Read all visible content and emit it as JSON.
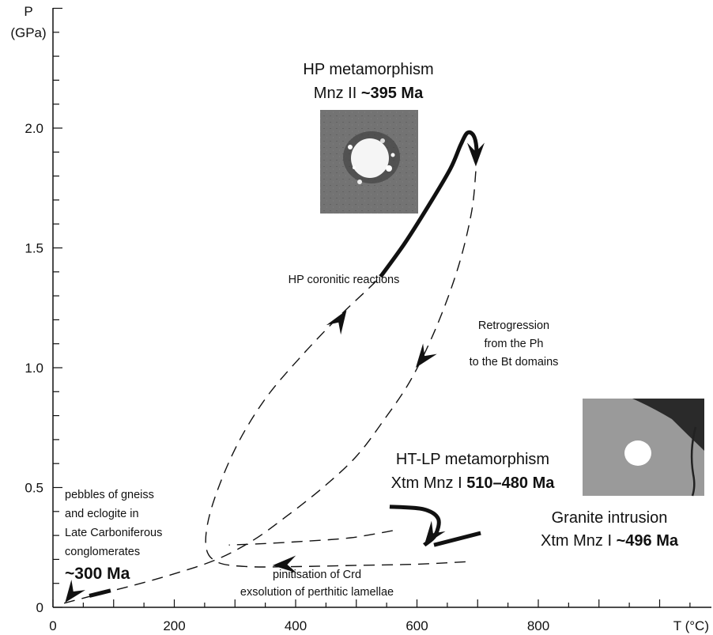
{
  "chart_data": {
    "type": "line",
    "title": "",
    "xlabel": "T (°C)",
    "ylabel_line1": "P",
    "ylabel_line2": "(GPa)",
    "xlim": [
      0,
      1000
    ],
    "ylim": [
      0,
      2.5
    ],
    "x_ticks": [
      {
        "value": 0,
        "label": "0"
      },
      {
        "value": 200,
        "label": "200"
      },
      {
        "value": 400,
        "label": "400"
      },
      {
        "value": 600,
        "label": "600"
      },
      {
        "value": 800,
        "label": "800"
      }
    ],
    "y_ticks": [
      {
        "value": 0,
        "label": "0"
      },
      {
        "value": 0.5,
        "label": "0.5"
      },
      {
        "value": 1.0,
        "label": "1.0"
      },
      {
        "value": 1.5,
        "label": "1.5"
      },
      {
        "value": 2.0,
        "label": "2.0"
      }
    ],
    "paths": [
      {
        "name": "prograde-dashed",
        "style": "dashed",
        "points": [
          [
            680,
            0.19
          ],
          [
            600,
            0.18
          ],
          [
            500,
            0.175
          ],
          [
            400,
            0.17
          ],
          [
            320,
            0.17
          ],
          [
            270,
            0.19
          ],
          [
            252,
            0.26
          ],
          [
            262,
            0.42
          ],
          [
            300,
            0.66
          ],
          [
            350,
            0.87
          ],
          [
            410,
            1.05
          ],
          [
            470,
            1.21
          ],
          [
            520,
            1.33
          ],
          [
            540,
            1.38
          ]
        ]
      },
      {
        "name": "hp-path-solid",
        "style": "solid",
        "points": [
          [
            540,
            1.38
          ],
          [
            580,
            1.52
          ],
          [
            620,
            1.68
          ],
          [
            655,
            1.83
          ],
          [
            672,
            1.93
          ],
          [
            683,
            1.98
          ],
          [
            693,
            1.97
          ],
          [
            698,
            1.92
          ],
          [
            697,
            1.86
          ]
        ]
      },
      {
        "name": "retrograde-dashed",
        "style": "dashed",
        "points": [
          [
            697,
            1.82
          ],
          [
            690,
            1.65
          ],
          [
            668,
            1.42
          ],
          [
            632,
            1.17
          ],
          [
            590,
            0.95
          ],
          [
            545,
            0.78
          ],
          [
            500,
            0.63
          ],
          [
            445,
            0.5
          ],
          [
            385,
            0.38
          ],
          [
            330,
            0.28
          ],
          [
            270,
            0.2
          ],
          [
            200,
            0.14
          ],
          [
            130,
            0.09
          ],
          [
            60,
            0.045
          ],
          [
            15,
            0.015
          ]
        ]
      },
      {
        "name": "granite-path-solid",
        "style": "solid",
        "points": [
          [
            555,
            0.42
          ],
          [
            610,
            0.41
          ],
          [
            635,
            0.37
          ],
          [
            630,
            0.3
          ],
          [
            612,
            0.26
          ]
        ]
      },
      {
        "name": "late-dashed",
        "style": "dashed",
        "points": [
          [
            560,
            0.32
          ],
          [
            490,
            0.29
          ],
          [
            410,
            0.275
          ],
          [
            340,
            0.265
          ],
          [
            290,
            0.26
          ]
        ]
      }
    ],
    "arrows": [
      {
        "name": "arrow-hp-peak",
        "at": [
          697,
          1.84
        ],
        "direction": "down"
      },
      {
        "name": "arrow-prograde",
        "at": [
          484,
          1.24
        ],
        "direction": "up-right"
      },
      {
        "name": "arrow-retro",
        "at": [
          598,
          1.0
        ],
        "direction": "down-left"
      },
      {
        "name": "arrow-granite",
        "at": [
          612,
          0.26
        ],
        "direction": "down-left"
      },
      {
        "name": "arrow-pinitisation",
        "at": [
          362,
          0.175
        ],
        "direction": "left"
      },
      {
        "name": "arrow-origin",
        "at": [
          20,
          0.02
        ],
        "direction": "down-left"
      }
    ],
    "thick_segment": {
      "name": "granite-intrusion-stub",
      "points": [
        [
          705,
          0.31
        ],
        [
          628,
          0.26
        ]
      ]
    },
    "thick_segment_bottom": {
      "name": "origin-stub",
      "points": [
        [
          95,
          0.07
        ],
        [
          60,
          0.048
        ]
      ]
    }
  },
  "annotations": {
    "hp_line1": "HP metamorphism",
    "hp_line2_prefix": "Mnz II ",
    "hp_line2_age": "~395 Ma",
    "hp_coronitic": "HP coronitic reactions",
    "retro_line1": "Retrogression",
    "retro_line2": "from the Ph",
    "retro_line3": "to the Bt domains",
    "htlp_line1": "HT-LP metamorphism",
    "htlp_line2_prefix": "Xtm Mnz I ",
    "htlp_line2_age": "510–480 Ma",
    "granite_line1": "Granite intrusion",
    "granite_line2_prefix": "Xtm Mnz I ",
    "granite_line2_age": "~496 Ma",
    "pebbles_line1": "pebbles of gneiss",
    "pebbles_line2": "and eclogite in",
    "pebbles_line3": "Late Carboniferous",
    "pebbles_line4": "conglomerates",
    "pebbles_age": "~300 Ma",
    "pinit_line1": "pinitisation of Crd",
    "pinit_line2": "exsolution of perthitic lamellae"
  }
}
